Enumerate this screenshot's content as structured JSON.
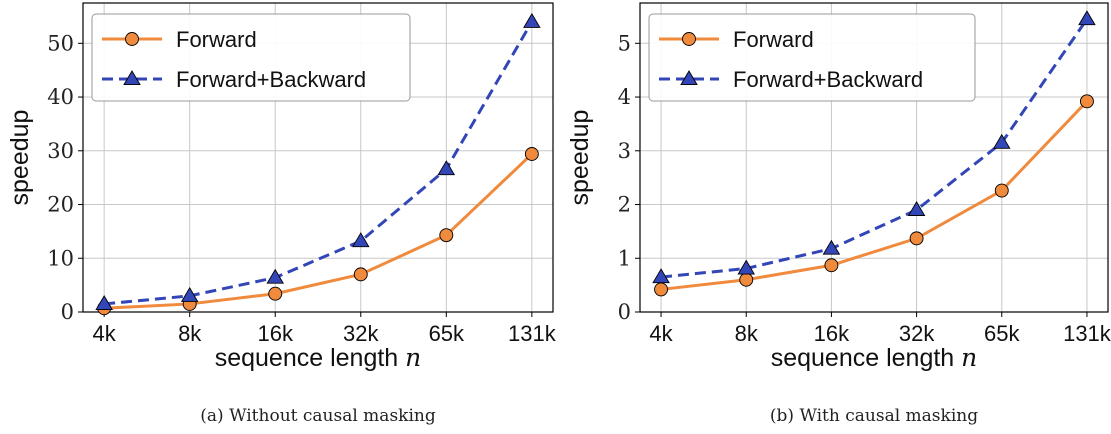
{
  "chart_data": [
    {
      "type": "line",
      "categories": [
        "4k",
        "8k",
        "16k",
        "32k",
        "65k",
        "131k"
      ],
      "series": [
        {
          "name": "Forward",
          "values": [
            0.7,
            1.5,
            3.4,
            7.0,
            14.3,
            29.4
          ],
          "color": "#f08a3c",
          "marker": "circle",
          "dash": "solid"
        },
        {
          "name": "Forward+Backward",
          "values": [
            1.5,
            3.0,
            6.4,
            13.2,
            26.6,
            54.0
          ],
          "color": "#3346b8",
          "marker": "triangle",
          "dash": "dashed"
        }
      ],
      "xlabel": "sequence length",
      "xlabel_var": "n",
      "ylabel": "speedup",
      "ylim": [
        0,
        57.5
      ],
      "yticks": [
        "0",
        "10",
        "20",
        "30",
        "40",
        "50"
      ],
      "ytick_values": [
        0,
        10,
        20,
        30,
        40,
        50
      ],
      "grid": true,
      "legend": "top-left",
      "caption": "(a) Without causal masking"
    },
    {
      "type": "line",
      "categories": [
        "4k",
        "8k",
        "16k",
        "32k",
        "65k",
        "131k"
      ],
      "series": [
        {
          "name": "Forward",
          "values": [
            0.42,
            0.6,
            0.87,
            1.37,
            2.26,
            3.92
          ],
          "color": "#f08a3c",
          "marker": "circle",
          "dash": "solid"
        },
        {
          "name": "Forward+Backward",
          "values": [
            0.65,
            0.81,
            1.18,
            1.9,
            3.15,
            5.45
          ],
          "color": "#3346b8",
          "marker": "triangle",
          "dash": "dashed"
        }
      ],
      "xlabel": "sequence length",
      "xlabel_var": "n",
      "ylabel": "speedup",
      "ylim": [
        0,
        5.75
      ],
      "yticks": [
        "0",
        "1",
        "2",
        "3",
        "4",
        "5"
      ],
      "ytick_values": [
        0,
        1,
        2,
        3,
        4,
        5
      ],
      "grid": true,
      "legend": "top-left",
      "caption": "(b) With causal masking"
    }
  ]
}
